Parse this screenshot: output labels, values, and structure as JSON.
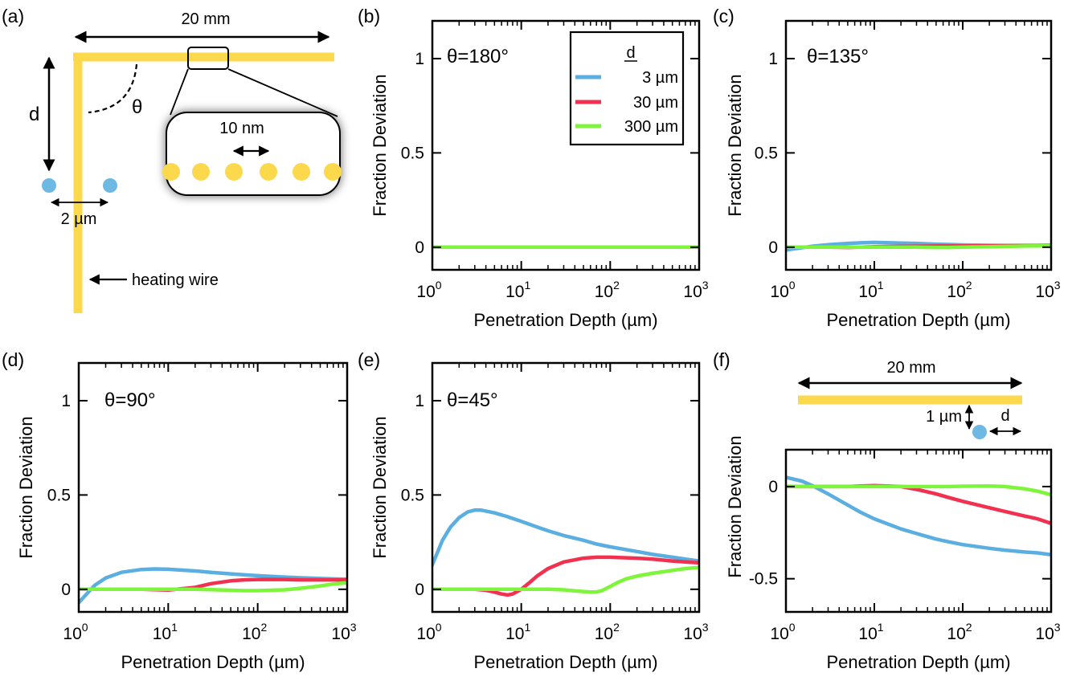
{
  "colors": {
    "blue": "#5aaee0",
    "red": "#f2304f",
    "green": "#7ef53a",
    "wire": "#fcd94c",
    "dot": "#6db9e3"
  },
  "schematic_a": {
    "panel_label": "(a)",
    "length_label": "20 mm",
    "d_label": "d",
    "theta_label": "θ",
    "spacing_label": "2 µm",
    "zoom_label": "10 nm",
    "wire_label": "heating wire"
  },
  "schematic_f": {
    "length_label": "20 mm",
    "height_label": "1 µm",
    "d_label": "d"
  },
  "legend": {
    "title": "d",
    "entries": [
      "3 µm",
      "30 µm",
      "300 µm"
    ]
  },
  "chart_data": [
    {
      "panel_label": "(b)",
      "type": "line",
      "annotation": "θ=180°",
      "xlabel": "Penetration Depth (µm)",
      "ylabel": "Fraction Deviation",
      "xscale": "log",
      "xlim": [
        1,
        1000
      ],
      "ylim": [
        -0.12,
        1.2
      ],
      "xticks": [
        {
          "base": "10",
          "exp": "0"
        },
        {
          "base": "10",
          "exp": "1"
        },
        {
          "base": "10",
          "exp": "2"
        },
        {
          "base": "10",
          "exp": "3"
        }
      ],
      "yticks": [
        {
          "v": 0,
          "label": "0"
        },
        {
          "v": 0.5,
          "label": "0.5"
        },
        {
          "v": 1,
          "label": "1"
        }
      ],
      "x": [
        1,
        2,
        3,
        5,
        7,
        10,
        20,
        30,
        50,
        70,
        100,
        200,
        300,
        500,
        700,
        1000
      ],
      "series": [
        {
          "name": "3 µm",
          "color": "blue",
          "values": [
            0,
            0,
            0,
            0,
            0,
            0,
            0,
            0,
            0,
            0,
            0,
            0,
            0,
            0,
            0,
            0
          ]
        },
        {
          "name": "30 µm",
          "color": "red",
          "values": [
            0,
            0,
            0,
            0,
            0,
            0,
            0,
            0,
            0,
            0,
            0,
            0,
            0,
            0,
            0,
            0
          ]
        },
        {
          "name": "300 µm",
          "color": "green",
          "values": [
            0,
            0,
            0,
            0,
            0,
            0,
            0,
            0,
            0,
            0,
            0,
            0,
            0,
            0,
            0,
            0
          ]
        }
      ]
    },
    {
      "panel_label": "(c)",
      "type": "line",
      "annotation": "θ=135°",
      "xlabel": "Penetration Depth (µm)",
      "ylabel": "Fraction Deviation",
      "xscale": "log",
      "xlim": [
        1,
        1000
      ],
      "ylim": [
        -0.12,
        1.2
      ],
      "xticks": [
        {
          "base": "10",
          "exp": "0"
        },
        {
          "base": "10",
          "exp": "1"
        },
        {
          "base": "10",
          "exp": "2"
        },
        {
          "base": "10",
          "exp": "3"
        }
      ],
      "yticks": [
        {
          "v": 0,
          "label": "0"
        },
        {
          "v": 0.5,
          "label": "0.5"
        },
        {
          "v": 1,
          "label": "1"
        }
      ],
      "x": [
        1,
        2,
        3,
        5,
        7,
        10,
        20,
        30,
        50,
        70,
        100,
        200,
        300,
        500,
        700,
        1000
      ],
      "series": [
        {
          "name": "3 µm",
          "color": "blue",
          "values": [
            -0.015,
            0.005,
            0.013,
            0.02,
            0.023,
            0.025,
            0.022,
            0.02,
            0.016,
            0.014,
            0.012,
            0.01,
            0.009,
            0.009,
            0.009,
            0.01
          ]
        },
        {
          "name": "30 µm",
          "color": "red",
          "values": [
            0,
            0,
            0,
            -0.001,
            0,
            0.002,
            0.004,
            0.005,
            0.006,
            0.006,
            0.007,
            0.007,
            0.008,
            0.009,
            0.009,
            0.01
          ]
        },
        {
          "name": "300 µm",
          "color": "green",
          "values": [
            0,
            0,
            0,
            0,
            0,
            0,
            0,
            0,
            -0.001,
            -0.001,
            0,
            0.002,
            0.004,
            0.006,
            0.007,
            0.008
          ]
        }
      ]
    },
    {
      "panel_label": "(d)",
      "type": "line",
      "annotation": "θ=90°",
      "xlabel": "Penetration Depth (µm)",
      "ylabel": "Fraction Deviation",
      "xscale": "log",
      "xlim": [
        1,
        1000
      ],
      "ylim": [
        -0.12,
        1.2
      ],
      "xticks": [
        {
          "base": "10",
          "exp": "0"
        },
        {
          "base": "10",
          "exp": "1"
        },
        {
          "base": "10",
          "exp": "2"
        },
        {
          "base": "10",
          "exp": "3"
        }
      ],
      "yticks": [
        {
          "v": 0,
          "label": "0"
        },
        {
          "v": 0.5,
          "label": "0.5"
        },
        {
          "v": 1,
          "label": "1"
        }
      ],
      "x": [
        1,
        1.5,
        2,
        3,
        5,
        7,
        10,
        20,
        30,
        50,
        70,
        100,
        200,
        300,
        500,
        700,
        1000
      ],
      "series": [
        {
          "name": "3 µm",
          "color": "blue",
          "values": [
            -0.07,
            0.02,
            0.06,
            0.09,
            0.105,
            0.108,
            0.106,
            0.097,
            0.09,
            0.082,
            0.077,
            0.072,
            0.065,
            0.061,
            0.057,
            0.055,
            0.053
          ]
        },
        {
          "name": "30 µm",
          "color": "red",
          "values": [
            0,
            0,
            0,
            0,
            0,
            -0.002,
            -0.004,
            0.01,
            0.03,
            0.045,
            0.05,
            0.052,
            0.052,
            0.05,
            0.05,
            0.05,
            0.05
          ]
        },
        {
          "name": "300 µm",
          "color": "green",
          "values": [
            0,
            0,
            0,
            0,
            0,
            0,
            0,
            0,
            -0.002,
            -0.005,
            -0.007,
            -0.007,
            -0.003,
            0.005,
            0.018,
            0.028,
            0.035
          ]
        }
      ]
    },
    {
      "panel_label": "(e)",
      "type": "line",
      "annotation": "θ=45°",
      "xlabel": "Penetration Depth (µm)",
      "ylabel": "Fraction Deviation",
      "xscale": "log",
      "xlim": [
        1,
        1000
      ],
      "ylim": [
        -0.12,
        1.2
      ],
      "xticks": [
        {
          "base": "10",
          "exp": "0"
        },
        {
          "base": "10",
          "exp": "1"
        },
        {
          "base": "10",
          "exp": "2"
        },
        {
          "base": "10",
          "exp": "3"
        }
      ],
      "yticks": [
        {
          "v": 0,
          "label": "0"
        },
        {
          "v": 0.5,
          "label": "0.5"
        },
        {
          "v": 1,
          "label": "1"
        }
      ],
      "x": [
        1,
        1.3,
        1.6,
        2,
        2.5,
        3,
        3.5,
        4,
        5,
        7,
        10,
        15,
        20,
        30,
        50,
        70,
        100,
        200,
        300,
        500,
        700,
        1000
      ],
      "series": [
        {
          "name": "3 µm",
          "color": "blue",
          "x": [
            1,
            1.3,
            1.6,
            2,
            2.5,
            3,
            3.5,
            4,
            5,
            7,
            10,
            15,
            20,
            30,
            50,
            70,
            100,
            200,
            300,
            500,
            700,
            1000
          ],
          "values": [
            0.13,
            0.26,
            0.33,
            0.38,
            0.41,
            0.42,
            0.42,
            0.415,
            0.405,
            0.385,
            0.36,
            0.33,
            0.31,
            0.285,
            0.26,
            0.24,
            0.225,
            0.2,
            0.185,
            0.17,
            0.16,
            0.15
          ]
        },
        {
          "name": "30 µm",
          "color": "red",
          "x": [
            1,
            2,
            3,
            4,
            5,
            6,
            7,
            8,
            10,
            12,
            15,
            20,
            30,
            50,
            70,
            100,
            200,
            300,
            500,
            700,
            1000
          ],
          "values": [
            0,
            0,
            0,
            -0.005,
            -0.015,
            -0.025,
            -0.03,
            -0.025,
            0,
            0.03,
            0.07,
            0.11,
            0.145,
            0.165,
            0.17,
            0.17,
            0.165,
            0.16,
            0.15,
            0.145,
            0.14
          ]
        },
        {
          "name": "300 µm",
          "color": "green",
          "x": [
            1,
            5,
            10,
            20,
            30,
            40,
            50,
            60,
            70,
            80,
            100,
            120,
            150,
            200,
            300,
            500,
            700,
            1000
          ],
          "values": [
            0,
            0,
            0,
            0,
            -0.003,
            -0.008,
            -0.012,
            -0.015,
            -0.014,
            -0.008,
            0.015,
            0.035,
            0.055,
            0.07,
            0.085,
            0.1,
            0.11,
            0.115
          ]
        }
      ]
    },
    {
      "panel_label": "(f)",
      "type": "line",
      "annotation": "",
      "xlabel": "Penetration Depth (µm)",
      "ylabel": "Fraction Deviation",
      "xscale": "log",
      "xlim": [
        1,
        1000
      ],
      "ylim": [
        -0.68,
        0.2
      ],
      "xticks": [
        {
          "base": "10",
          "exp": "0"
        },
        {
          "base": "10",
          "exp": "1"
        },
        {
          "base": "10",
          "exp": "2"
        },
        {
          "base": "10",
          "exp": "3"
        }
      ],
      "yticks": [
        {
          "v": -0.5,
          "label": "-0.5"
        },
        {
          "v": 0,
          "label": "0"
        }
      ],
      "x": [
        1,
        1.5,
        2,
        3,
        5,
        7,
        10,
        20,
        30,
        50,
        70,
        100,
        200,
        300,
        500,
        700,
        1000
      ],
      "series": [
        {
          "name": "3 µm",
          "color": "blue",
          "values": [
            0.05,
            0.03,
            0.005,
            -0.04,
            -0.1,
            -0.14,
            -0.175,
            -0.23,
            -0.255,
            -0.285,
            -0.3,
            -0.315,
            -0.335,
            -0.345,
            -0.355,
            -0.36,
            -0.37
          ]
        },
        {
          "name": "30 µm",
          "color": "red",
          "values": [
            0,
            0,
            0,
            0,
            0,
            0.003,
            0.005,
            0,
            -0.015,
            -0.04,
            -0.06,
            -0.08,
            -0.115,
            -0.135,
            -0.16,
            -0.175,
            -0.2
          ]
        },
        {
          "name": "300 µm",
          "color": "green",
          "values": [
            0,
            0,
            0,
            0,
            0,
            0,
            0,
            0,
            0,
            0,
            0,
            0.002,
            0.003,
            0,
            -0.012,
            -0.025,
            -0.045
          ]
        }
      ]
    }
  ]
}
